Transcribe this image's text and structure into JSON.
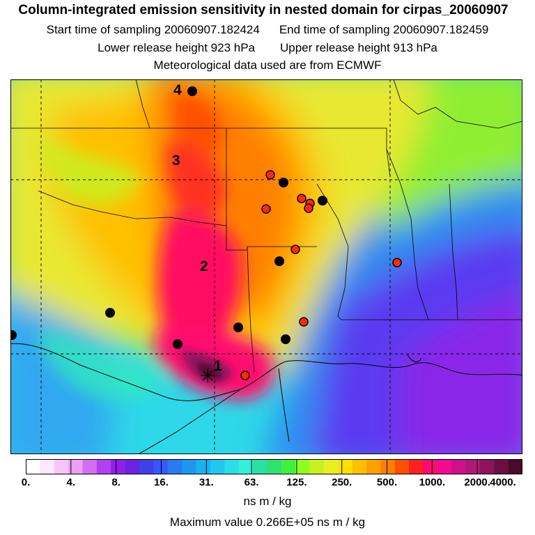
{
  "header": {
    "title": "Column-integrated emission sensitivity in nested domain for cirpas_20060907",
    "sampling_start": "Start time of sampling 20060907.182424",
    "sampling_end": "End time of sampling 20060907.182459",
    "lower_release": "Lower release height  923 hPa",
    "upper_release": "Upper release height  913 hPa",
    "met_data": "Meteorological data used are from ECMWF"
  },
  "map": {
    "trajectory_labels": [
      "1",
      "2",
      "3",
      "4"
    ],
    "black_site_count": 9,
    "red_site_count": 9
  },
  "colorbar": {
    "tick_labels": [
      "0.",
      "4.",
      "8.",
      "16.",
      "31.",
      "63.",
      "125.",
      "250.",
      "500.",
      "1000.",
      "2000.",
      "4000."
    ],
    "colors": [
      "#ffffff",
      "#fde8fd",
      "#f7c6f7",
      "#eea0f2",
      "#d070ee",
      "#b040f0",
      "#9020e8",
      "#6a24e0",
      "#4040e8",
      "#3858ff",
      "#2a7af0",
      "#1e96f0",
      "#18b2f0",
      "#20c8f0",
      "#28e0e8",
      "#30f0d8",
      "#28e0a0",
      "#30e070",
      "#40f040",
      "#90ff20",
      "#c8f020",
      "#e8f020",
      "#ffe000",
      "#ffc000",
      "#ffa000",
      "#ff8000",
      "#ff5000",
      "#ff2020",
      "#ff0a70",
      "#f20a90",
      "#d0108a",
      "#b01878",
      "#8e1460",
      "#6a1040",
      "#4a0a28"
    ],
    "unit": "ns m / kg",
    "max_value": "Maximum value  0.266E+05 ns m / kg"
  }
}
